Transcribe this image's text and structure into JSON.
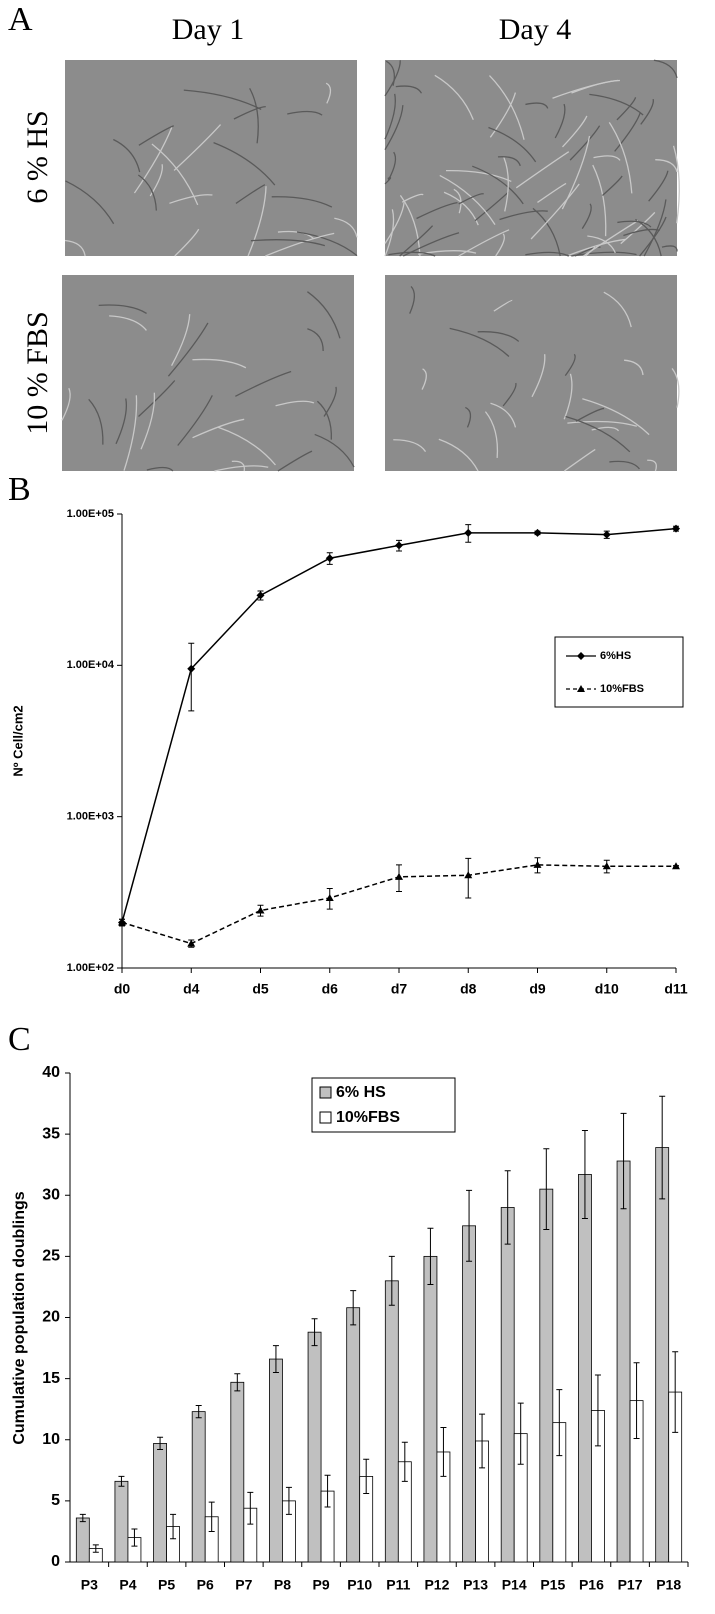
{
  "image_panel": {
    "label": "A",
    "columns": [
      "Day 1",
      "Day 4"
    ],
    "rows": [
      "6 % HS",
      "10 % FBS"
    ]
  },
  "chart_data": [
    {
      "type": "line",
      "panel_label": "B",
      "y_label": "Nº Cell/cm2",
      "log_scale": true,
      "categories": [
        "d0",
        "d4",
        "d5",
        "d6",
        "d7",
        "d8",
        "d9",
        "d10",
        "d11"
      ],
      "ylim": [
        100,
        100000
      ],
      "yticks": [
        {
          "value": 100,
          "label": "1.00E+02"
        },
        {
          "value": 1000,
          "label": "1.00E+03"
        },
        {
          "value": 10000,
          "label": "1.00E+04"
        },
        {
          "value": 100000,
          "label": "1.00E+05"
        }
      ],
      "legend": "right",
      "series": [
        {
          "name": "6%HS",
          "color": "#000000",
          "marker": "diamond",
          "dashed": false,
          "values": [
            200,
            9500,
            29000,
            51000,
            62000,
            75000,
            75000,
            73000,
            80000
          ],
          "errors": [
            10,
            4500,
            2000,
            4500,
            5000,
            10000,
            2000,
            4000,
            3000
          ]
        },
        {
          "name": "10%FBS",
          "color": "#000000",
          "marker": "triangle",
          "dashed": true,
          "values": [
            200,
            145,
            240,
            290,
            400,
            410,
            480,
            470,
            470
          ],
          "errors": [
            10,
            8,
            20,
            45,
            80,
            120,
            55,
            45,
            5
          ]
        }
      ]
    },
    {
      "type": "bar",
      "panel_label": "C",
      "y_label": "Cumulative population doublings",
      "categories": [
        "P3",
        "P4",
        "P5",
        "P6",
        "P7",
        "P8",
        "P9",
        "P10",
        "P11",
        "P12",
        "P13",
        "P14",
        "P15",
        "P16",
        "P17",
        "P18"
      ],
      "ylim": [
        0,
        40
      ],
      "yticks": [
        0,
        5,
        10,
        15,
        20,
        25,
        30,
        35,
        40
      ],
      "legend": "top",
      "series": [
        {
          "name": "6% HS",
          "color": "#c0c0c0",
          "values": [
            3.6,
            6.6,
            9.7,
            12.3,
            14.7,
            16.6,
            18.8,
            20.8,
            23.0,
            25.0,
            27.5,
            29.0,
            30.5,
            31.7,
            32.8,
            33.9
          ],
          "errors": [
            0.3,
            0.4,
            0.5,
            0.5,
            0.7,
            1.1,
            1.1,
            1.4,
            2.0,
            2.3,
            2.9,
            3.0,
            3.3,
            3.6,
            3.9,
            4.2
          ]
        },
        {
          "name": "10%FBS",
          "color": "#ffffff",
          "values": [
            1.1,
            2.0,
            2.9,
            3.7,
            4.4,
            5.0,
            5.8,
            7.0,
            8.2,
            9.0,
            9.9,
            10.5,
            11.4,
            12.4,
            13.2,
            13.9
          ],
          "errors": [
            0.3,
            0.7,
            1.0,
            1.2,
            1.3,
            1.1,
            1.3,
            1.4,
            1.6,
            2.0,
            2.2,
            2.5,
            2.7,
            2.9,
            3.1,
            3.3
          ]
        }
      ]
    }
  ]
}
